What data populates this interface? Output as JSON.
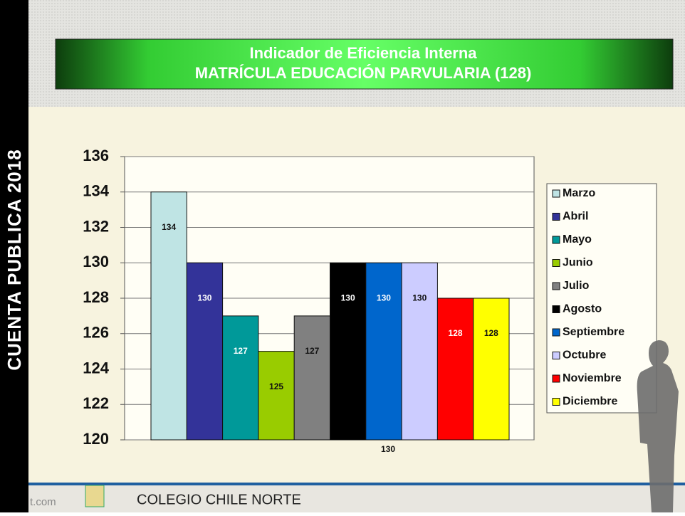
{
  "side_label": "CUENTA PUBLICA 2018",
  "footer": {
    "site": "t.com",
    "school": "COLEGIO CHILE NORTE"
  },
  "chart_data": {
    "type": "bar",
    "title": "Indicador de Eficiencia Interna",
    "subtitle": "MATRÍCULA EDUCACIÓN PARVULARIA (128)",
    "categories": [
      "130"
    ],
    "series": [
      {
        "name": "Marzo",
        "color": "#bfe4e4",
        "values": [
          134
        ]
      },
      {
        "name": "Abril",
        "color": "#333399",
        "values": [
          130
        ]
      },
      {
        "name": "Mayo",
        "color": "#009999",
        "values": [
          127
        ]
      },
      {
        "name": "Junio",
        "color": "#99cc00",
        "values": [
          125
        ]
      },
      {
        "name": "Julio",
        "color": "#808080",
        "values": [
          127
        ]
      },
      {
        "name": "Agosto",
        "color": "#000000",
        "values": [
          130
        ]
      },
      {
        "name": "Septiembre",
        "color": "#0066cc",
        "values": [
          130
        ]
      },
      {
        "name": "Octubre",
        "color": "#ccccff",
        "values": [
          130
        ]
      },
      {
        "name": "Noviembre",
        "color": "#ff0000",
        "values": [
          128
        ]
      },
      {
        "name": "Diciembre",
        "color": "#ffff00",
        "values": [
          128
        ]
      }
    ],
    "ylim": [
      120,
      136
    ],
    "yticks": [
      120,
      122,
      124,
      126,
      128,
      130,
      132,
      134,
      136
    ],
    "grid": true,
    "legend": "right"
  }
}
